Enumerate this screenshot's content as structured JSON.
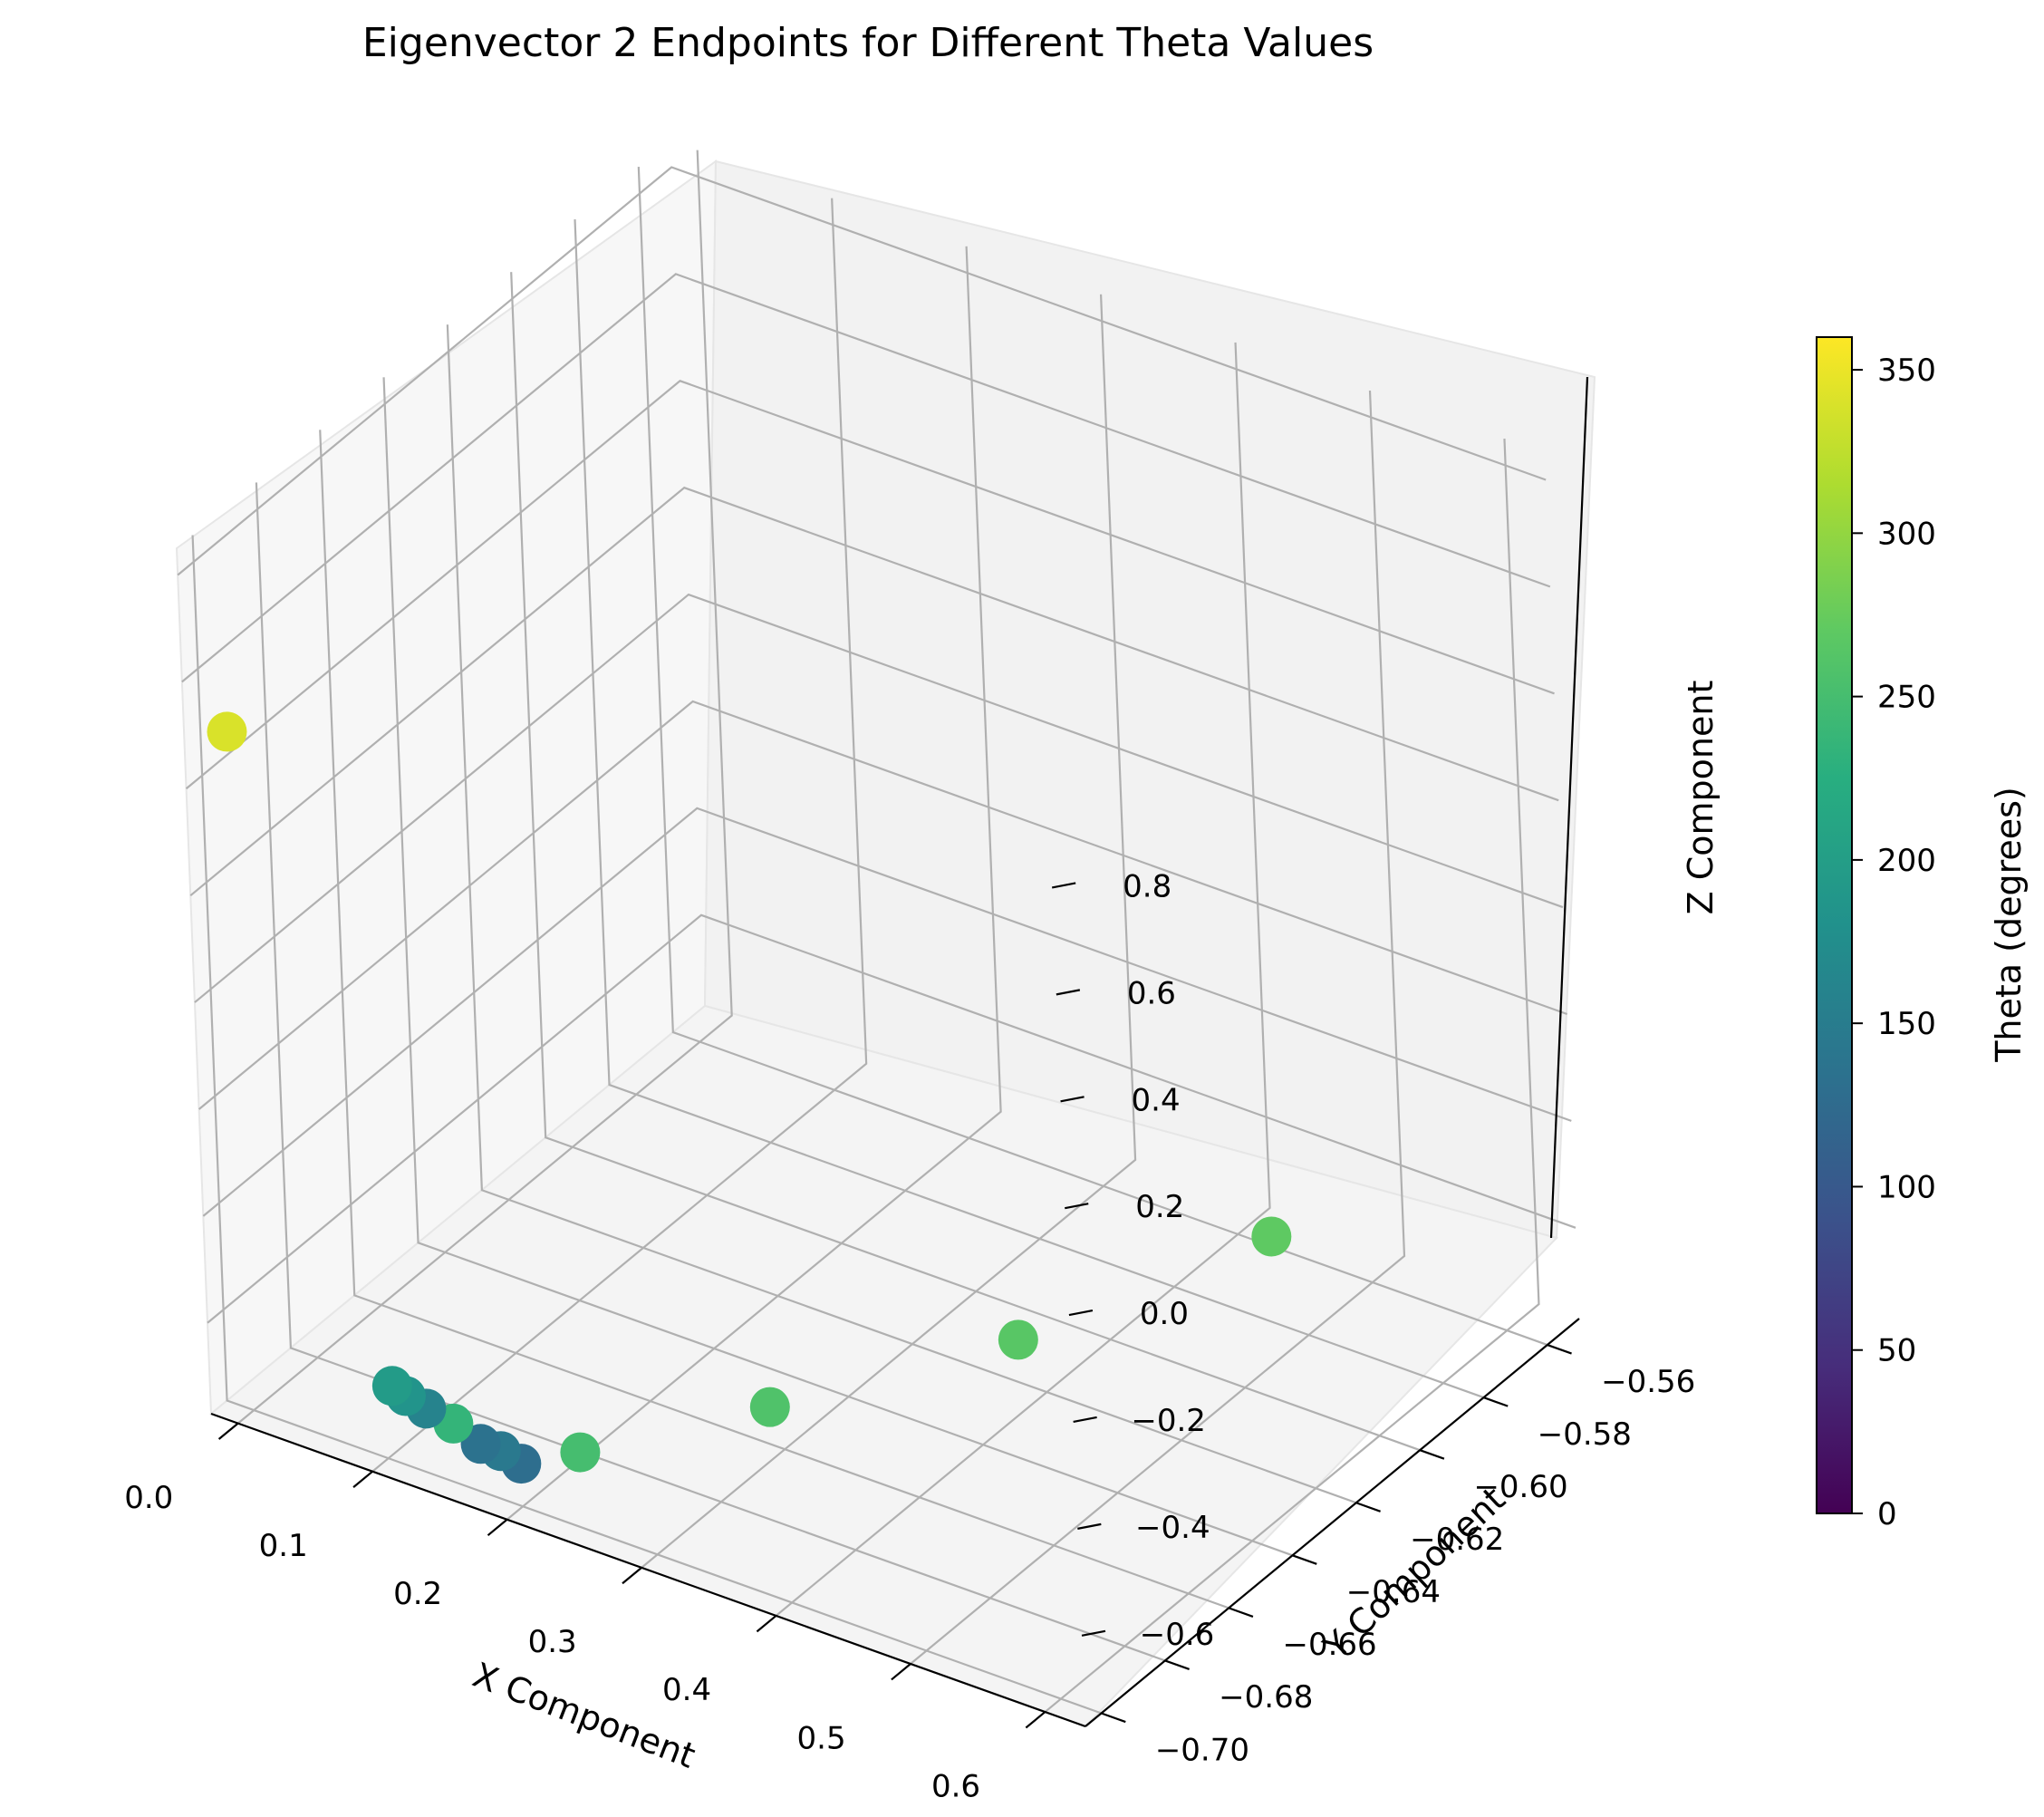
{
  "chart_data": {
    "type": "scatter",
    "projection": "3d",
    "title": "Eigenvector 2 Endpoints for Different Theta Values",
    "xlabel": "X Component",
    "ylabel": "Y Component",
    "zlabel": "Z Component",
    "xlim": [
      -0.02,
      0.63
    ],
    "ylim": [
      -0.705,
      -0.55
    ],
    "zlim": [
      -0.77,
      0.85
    ],
    "xticks": [
      "0.0",
      "0.1",
      "0.2",
      "0.3",
      "0.4",
      "0.5",
      "0.6"
    ],
    "yticks": [
      "−0.56",
      "−0.58",
      "−0.60",
      "−0.62",
      "−0.64",
      "−0.66",
      "−0.68",
      "−0.70"
    ],
    "zticks": [
      "0.8",
      "0.6",
      "0.4",
      "0.2",
      "0.0",
      "−0.2",
      "−0.4",
      "−0.6"
    ],
    "grid": true,
    "colormap": "viridis",
    "colorbar": {
      "label": "Theta (degrees)",
      "range": [
        0,
        360
      ],
      "ticks": [
        "0",
        "50",
        "100",
        "150",
        "200",
        "250",
        "300",
        "350"
      ]
    },
    "points": [
      {
        "x": 0.0,
        "y": -0.7,
        "z": 0.5,
        "theta": 340
      },
      {
        "x": 0.45,
        "y": -0.57,
        "z": -0.68,
        "theta": 270
      },
      {
        "x": 0.38,
        "y": -0.62,
        "z": -0.69,
        "theta": 265
      },
      {
        "x": 0.29,
        "y": -0.66,
        "z": -0.7,
        "theta": 258
      },
      {
        "x": 0.22,
        "y": -0.69,
        "z": -0.7,
        "theta": 250
      },
      {
        "x": 0.2,
        "y": -0.7,
        "z": -0.69,
        "theta": 130
      },
      {
        "x": 0.185,
        "y": -0.7,
        "z": -0.68,
        "theta": 145
      },
      {
        "x": 0.17,
        "y": -0.7,
        "z": -0.68,
        "theta": 135
      },
      {
        "x": 0.15,
        "y": -0.7,
        "z": -0.66,
        "theta": 235
      },
      {
        "x": 0.13,
        "y": -0.7,
        "z": -0.65,
        "theta": 160
      },
      {
        "x": 0.115,
        "y": -0.7,
        "z": -0.64,
        "theta": 185
      },
      {
        "x": 0.105,
        "y": -0.7,
        "z": -0.63,
        "theta": 195
      }
    ]
  }
}
